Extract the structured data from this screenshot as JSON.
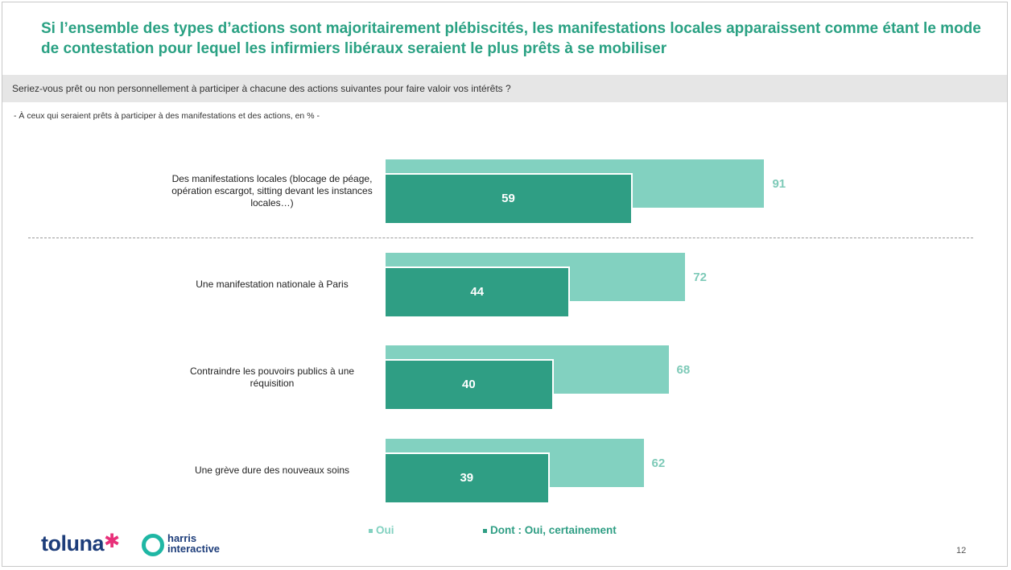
{
  "header": {
    "title": "Si l’ensemble des types d’actions sont majoritairement plébiscités, les manifestations locales apparaissent comme étant le mode de contestation pour lequel les infirmiers libéraux seraient le plus prêts à se mobiliser",
    "question": "Seriez-vous prêt ou non personnellement à participer à chacune des actions suivantes pour faire valoir vos intérêts ?",
    "subnote": "- À ceux qui seraient prêts à participer à des manifestations et des actions, en % -"
  },
  "chart_data": {
    "type": "bar",
    "orientation": "horizontal",
    "categories": [
      "Des manifestations locales (blocage de péage, opération escargot, sitting devant les instances locales…)",
      "Une manifestation nationale à Paris",
      "Contraindre les pouvoirs publics à une réquisition",
      "Une grève dure des nouveaux soins"
    ],
    "series": [
      {
        "name": "Oui",
        "values": [
          91,
          72,
          68,
          62
        ],
        "color": "#82d1c0"
      },
      {
        "name": "Dont : Oui, certainement",
        "values": [
          59,
          44,
          40,
          39
        ],
        "color": "#2f9e84"
      }
    ],
    "xlim": [
      0,
      100
    ],
    "legend": "bottom",
    "grid": false
  },
  "footer": {
    "logo_left": "toluna",
    "logo_right_line1": "harris",
    "logo_right_line2": "interactive",
    "page_number": "12"
  },
  "colors": {
    "accent": "#2aa183",
    "oui": "#82d1c0",
    "certainement": "#2f9e84",
    "oui_label": "#7ecab8"
  }
}
